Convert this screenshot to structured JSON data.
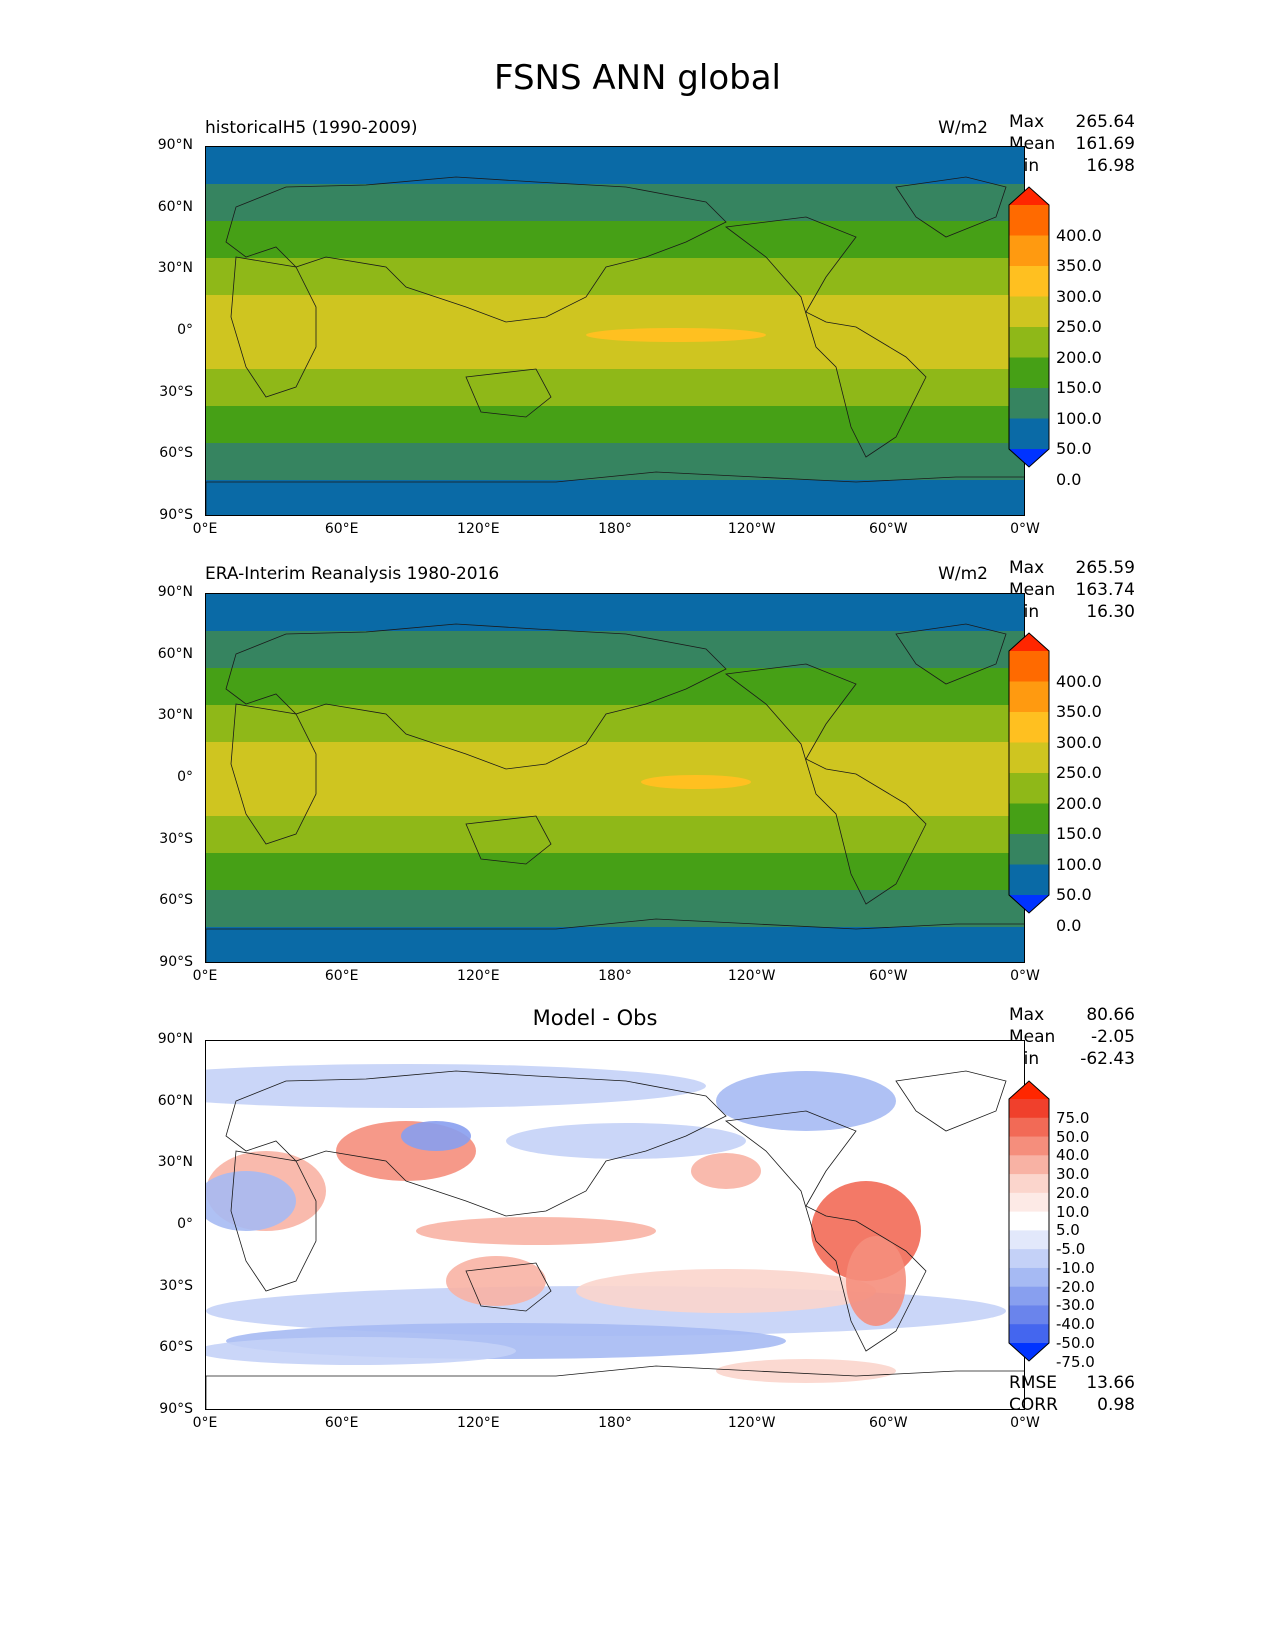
{
  "title": "FSNS ANN global",
  "panels": [
    {
      "title": "historicalH5 (1990-2009)",
      "units": "W/m2",
      "stats": [
        {
          "label": "Max",
          "value": "265.64"
        },
        {
          "label": "Mean",
          "value": "161.69"
        },
        {
          "label": "Min",
          "value": "16.98"
        }
      ]
    },
    {
      "title": "ERA-Interim Reanalysis 1980-2016",
      "units": "W/m2",
      "stats": [
        {
          "label": "Max",
          "value": "265.59"
        },
        {
          "label": "Mean",
          "value": "163.74"
        },
        {
          "label": "Min",
          "value": "16.30"
        }
      ]
    },
    {
      "title": "Model - Obs",
      "units": "",
      "stats": [
        {
          "label": "Max",
          "value": "80.66"
        },
        {
          "label": "Mean",
          "value": "-2.05"
        },
        {
          "label": "Min",
          "value": "-62.43"
        }
      ],
      "extra_stats": [
        {
          "label": "RMSE",
          "value": "13.66"
        },
        {
          "label": "CORR",
          "value": "0.98"
        }
      ]
    }
  ],
  "axes": {
    "lat_ticks": [
      "90°N",
      "60°N",
      "30°N",
      "0°",
      "30°S",
      "60°S",
      "90°S"
    ],
    "lon_ticks": [
      "0°E",
      "60°E",
      "120°E",
      "180°",
      "120°W",
      "60°W",
      "0°W"
    ]
  },
  "colorbar_fields": {
    "labels": [
      "400.0",
      "350.0",
      "300.0",
      "250.0",
      "200.0",
      "150.0",
      "100.0",
      "50.0",
      "0.0"
    ],
    "colors": [
      "#ff2600",
      "#ff6a00",
      "#ff9a10",
      "#ffc020",
      "#cfc520",
      "#8fb818",
      "#46a016",
      "#368460",
      "#0a6aa6",
      "#0033ff"
    ]
  },
  "colorbar_diff": {
    "labels": [
      "75.0",
      "50.0",
      "40.0",
      "30.0",
      "20.0",
      "10.0",
      "5.0",
      "-5.0",
      "-10.0",
      "-20.0",
      "-30.0",
      "-40.0",
      "-50.0",
      "-75.0"
    ],
    "colors": [
      "#ff2600",
      "#f0402c",
      "#f26a56",
      "#f58e7c",
      "#f8b2a4",
      "#fbd5cc",
      "#fdeae6",
      "#ffffff",
      "#e2e8fb",
      "#c4d1f7",
      "#a6baf3",
      "#889fef",
      "#6a84ec",
      "#4466ef",
      "#0033ff"
    ]
  },
  "map_data": {
    "field_band_colors_model": [
      "#0a6aa6",
      "#368460",
      "#46a016",
      "#8fb818",
      "#cfc520",
      "#cfc520",
      "#8fb818",
      "#46a016",
      "#368460",
      "#0a6aa6"
    ],
    "field_band_colors_obs": [
      "#0a6aa6",
      "#368460",
      "#46a016",
      "#8fb818",
      "#cfc520",
      "#cfc520",
      "#8fb818",
      "#46a016",
      "#368460",
      "#0a6aa6"
    ]
  }
}
